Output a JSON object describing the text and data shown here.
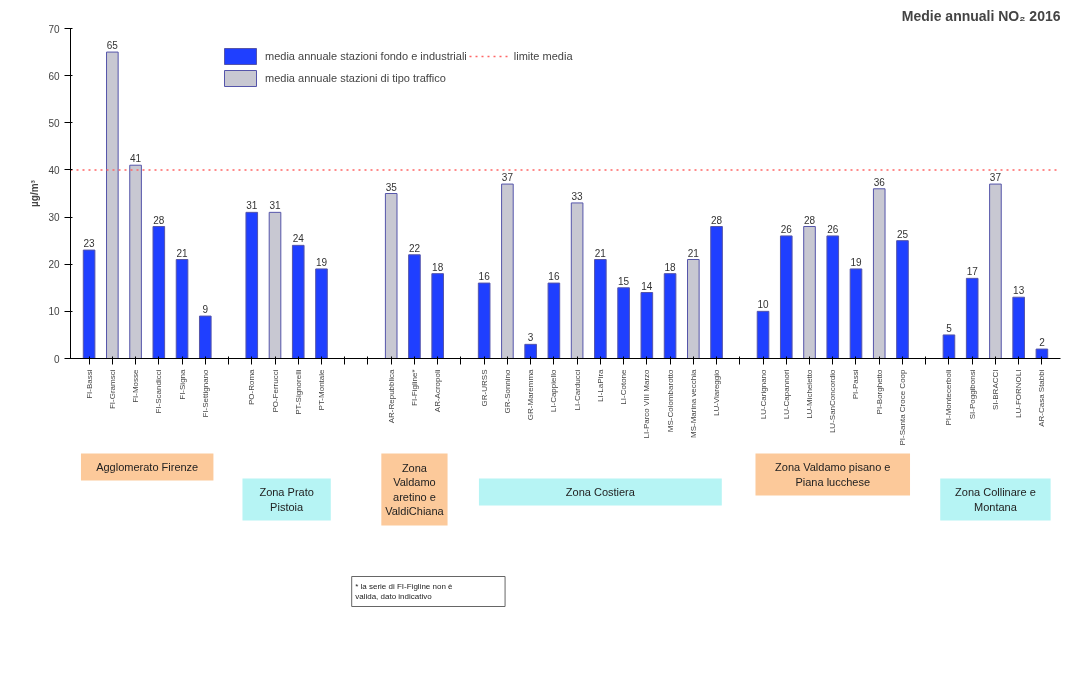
{
  "chart_data": {
    "type": "bar",
    "title": "Medie annuali NO₂ 2016",
    "ylabel": "µg/m³",
    "categories": [
      "FI-Bassi",
      "FI-Gramsci",
      "FI-Mosse",
      "FI-Scandicci",
      "FI-Signa",
      "FI-Settignano",
      null,
      "PO-Roma",
      "PO-Ferrucci",
      "PT-Signorelli",
      "PT-Montale",
      null,
      null,
      "AR-Repubblica",
      "FI-Figline*",
      "AR-Acropoli",
      null,
      "GR-URSS",
      "GR-Sonnino",
      "GR-Maremma",
      "LI-Cappiello",
      "LI-Carducci",
      "LI-LaPira",
      "LI-Cotone",
      "LI-Parco VIII Marzo",
      "MS-Colombarotto",
      "MS-Marina vecchia",
      "LU-Viareggio",
      null,
      "LU-Carignano",
      "LU-Capannori",
      "LU-Micheletto",
      "LU-SanConcordio",
      "PI-Passi",
      "PI-Borghetto",
      "PI-Santa Croce Coop",
      null,
      "PI-Montecerboli",
      "SI-Poggibonsi",
      "SI-BRACCI",
      "LU-FORNOLI",
      "AR-Casa Stabbi"
    ],
    "series": [
      {
        "name": "media annuale stazioni fondo e industriali",
        "color": "#1f3fff",
        "values": [
          23,
          null,
          null,
          28,
          21,
          9,
          null,
          31,
          null,
          24,
          19,
          null,
          null,
          null,
          22,
          18,
          null,
          16,
          null,
          3,
          16,
          null,
          21,
          15,
          14,
          18,
          null,
          28,
          null,
          10,
          26,
          null,
          26,
          19,
          null,
          25,
          null,
          5,
          17,
          null,
          13,
          2
        ]
      },
      {
        "name": "media annuale stazioni di tipo traffico",
        "color": "#c8c8d2",
        "values": [
          null,
          65,
          41,
          null,
          null,
          null,
          null,
          null,
          31,
          null,
          null,
          null,
          null,
          35,
          null,
          null,
          null,
          null,
          37,
          null,
          null,
          33,
          null,
          null,
          null,
          null,
          21,
          null,
          null,
          null,
          null,
          28,
          null,
          null,
          36,
          null,
          null,
          null,
          null,
          37,
          null,
          null
        ]
      }
    ],
    "stacked": true,
    "data_labels": true,
    "ylim": [
      0,
      70
    ],
    "yticks": [
      0,
      10,
      20,
      30,
      40,
      50,
      60,
      70
    ],
    "grid": false,
    "legend": "top",
    "ref_lines": [
      {
        "axis": "y",
        "value": 40,
        "label": "limite media",
        "color": "#ff6666",
        "line_style": "dotted"
      }
    ],
    "annotations": [
      "Agglomerato Firenze",
      "Zona Prato Pistoia",
      "Zona Valdamo aretino e ValdiChiana",
      "Zona Costiera",
      "Zona Valdamo pisano e Piana lucchese",
      "Zona Collinare e Montana",
      "* la serie di FI-Figline non è valida, dato indicativo"
    ]
  }
}
